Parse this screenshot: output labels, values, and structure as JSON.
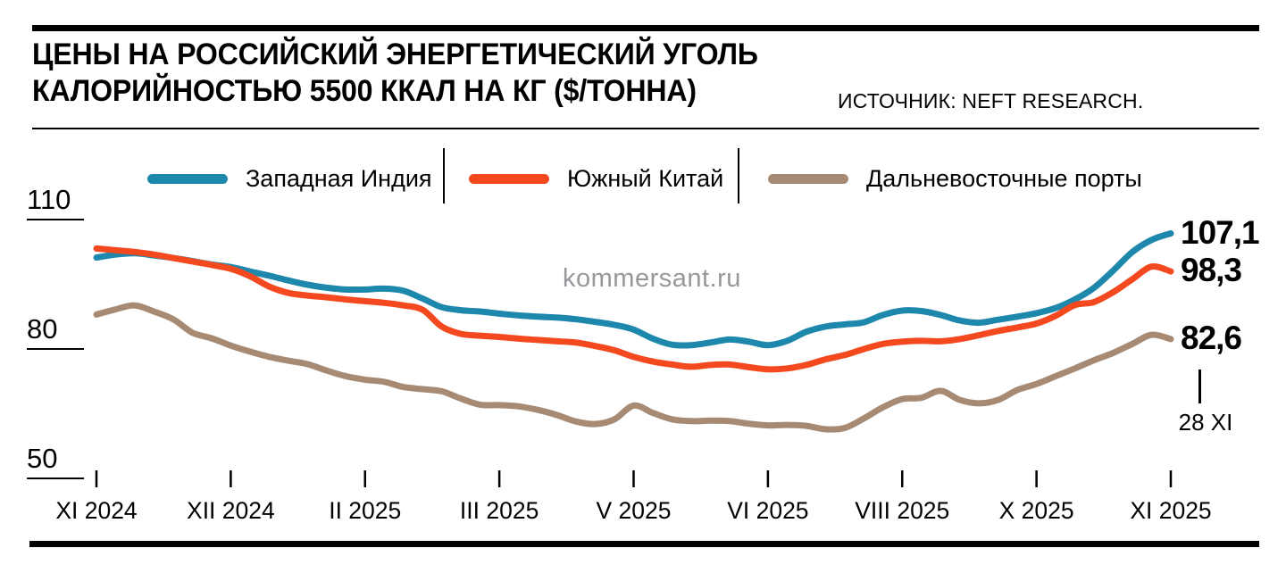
{
  "header": {
    "title_line1": "ЦЕНЫ НА РОССИЙСКИЙ ЭНЕРГЕТИЧЕСКИЙ УГОЛЬ",
    "title_line2": "КАЛОРИЙНОСТЬЮ 5500 ККАЛ НА КГ ($/ТОННА)",
    "source": "ИСТОЧНИК: NEFT RESEARCH."
  },
  "watermark": "kommersant.ru",
  "legend": {
    "items": [
      {
        "label": "Западная Индия",
        "color": "#1d87ac"
      },
      {
        "label": "Южный Китай",
        "color": "#f4491f"
      },
      {
        "label": "Дальневосточные порты",
        "color": "#a68a73"
      }
    ]
  },
  "annotation": {
    "last_point_date": "28 XI"
  },
  "chart_data": {
    "type": "line",
    "title": "ЦЕНЫ НА РОССИЙСКИЙ ЭНЕРГЕТИЧЕСКИЙ УГОЛЬ КАЛОРИЙНОСТЬЮ 5500 ККАЛ НА КГ ($/ТОННА)",
    "source": "NEFT RESEARCH",
    "unit": "$/тонна",
    "grid": "off",
    "legend_position": "top",
    "y_axis": {
      "ticks": [
        110,
        80,
        50
      ],
      "range_top": 110,
      "units_per_gridstep": 30
    },
    "x_axis": {
      "tick_labels": [
        "XI 2024",
        "XII 2024",
        "II 2025",
        "III 2025",
        "V 2025",
        "VI 2025",
        "VIII 2025",
        "X 2025",
        "XI 2025"
      ],
      "points_per_tick": 7,
      "last_point_label": "28 XI"
    },
    "series": [
      {
        "name": "Западная Индия",
        "color": "#1d87ac",
        "end_label": "107,1",
        "end_value": 107.1,
        "values": [
          101.5,
          102.2,
          102.5,
          102.0,
          101.4,
          100.7,
          99.9,
          99.3,
          98.3,
          97.3,
          96.2,
          95.2,
          94.5,
          94.1,
          94.1,
          94.3,
          93.8,
          92.0,
          90.0,
          89.3,
          89.0,
          88.5,
          88.1,
          87.8,
          87.6,
          87.2,
          86.6,
          85.9,
          84.8,
          82.7,
          81.3,
          81.2,
          81.8,
          82.5,
          82.0,
          81.2,
          82.2,
          84.3,
          85.5,
          86.0,
          86.5,
          88.2,
          89.2,
          89.1,
          88.2,
          86.9,
          86.4,
          87.1,
          87.8,
          88.6,
          89.8,
          91.8,
          94.5,
          98.5,
          102.8,
          105.6,
          107.1
        ]
      },
      {
        "name": "Южный Китай",
        "color": "#f4491f",
        "end_label": "98,3",
        "end_value": 98.3,
        "values": [
          103.6,
          103.2,
          102.8,
          102.2,
          101.4,
          100.6,
          99.8,
          98.9,
          97.2,
          94.8,
          93.3,
          92.7,
          92.3,
          91.8,
          91.4,
          91.0,
          90.4,
          89.4,
          85.5,
          83.8,
          83.4,
          83.1,
          82.7,
          82.4,
          82.1,
          81.8,
          81.0,
          80.0,
          78.5,
          77.4,
          76.7,
          76.2,
          76.6,
          76.7,
          76.1,
          75.6,
          75.8,
          76.6,
          77.9,
          78.9,
          80.3,
          81.5,
          82.0,
          82.2,
          82.1,
          82.6,
          83.5,
          84.5,
          85.3,
          86.2,
          88.0,
          90.5,
          91.2,
          93.5,
          96.5,
          99.4,
          98.3
        ]
      },
      {
        "name": "Дальневосточные порты",
        "color": "#a68a73",
        "end_label": "82,6",
        "end_value": 82.6,
        "values": [
          88.3,
          89.5,
          90.4,
          89.0,
          87.2,
          84.1,
          82.8,
          81.1,
          79.7,
          78.5,
          77.6,
          76.8,
          75.3,
          74.0,
          73.2,
          72.7,
          71.5,
          71.0,
          70.5,
          68.8,
          67.4,
          67.3,
          67.0,
          66.2,
          65.0,
          63.5,
          62.9,
          64.0,
          67.2,
          65.5,
          64.0,
          63.6,
          63.7,
          63.6,
          63.0,
          62.6,
          62.7,
          62.5,
          61.7,
          62.0,
          64.2,
          66.8,
          68.7,
          69.0,
          70.6,
          68.5,
          67.7,
          68.5,
          70.8,
          72.2,
          74.0,
          75.8,
          77.7,
          79.4,
          81.5,
          83.6,
          82.6
        ]
      }
    ]
  }
}
